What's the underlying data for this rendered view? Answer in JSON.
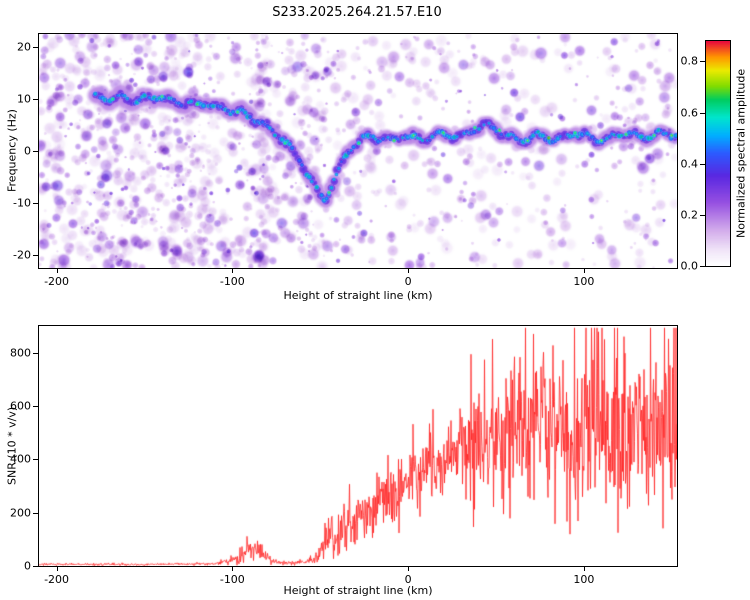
{
  "title": "S233.2025.264.21.57.E10",
  "colors": {
    "snr_line": "#ff2525",
    "axis": "#000000",
    "background": "#ffffff"
  },
  "chart_data": [
    {
      "type": "heatmap",
      "title": "S233.2025.264.21.57.E10",
      "xlabel": "Height of straight line (km)",
      "ylabel": "Frequency (Hz)",
      "xlim": [
        -210,
        153
      ],
      "ylim": [
        -22.5,
        22.5
      ],
      "xticks": [
        -200,
        -100,
        0,
        100
      ],
      "yticks": [
        -20,
        -10,
        0,
        10,
        20
      ],
      "grid": false,
      "legend": false,
      "colorbar": {
        "label": "Normalized spectral amplitude",
        "ticks": [
          0,
          0.2,
          0.4,
          0.6,
          0.8
        ],
        "vmin": 0,
        "vmax": 0.88
      },
      "ridge_track": [
        [
          -178,
          10.5
        ],
        [
          -170,
          10
        ],
        [
          -163,
          10.5
        ],
        [
          -156,
          9.6
        ],
        [
          -149,
          10.2
        ],
        [
          -142,
          10.4
        ],
        [
          -135,
          9.6
        ],
        [
          -128,
          9.2
        ],
        [
          -121,
          8.8
        ],
        [
          -114,
          9.2
        ],
        [
          -107,
          8.2
        ],
        [
          -101,
          7.8
        ],
        [
          -95,
          7.4
        ],
        [
          -89,
          6.4
        ],
        [
          -83,
          5.2
        ],
        [
          -77,
          3.8
        ],
        [
          -71,
          2.2
        ],
        [
          -66,
          0.2
        ],
        [
          -61,
          -2.2
        ],
        [
          -57,
          -4.6
        ],
        [
          -53,
          -6.8
        ],
        [
          -50,
          -8.4
        ],
        [
          -47,
          -9.2
        ],
        [
          -44,
          -7.2
        ],
        [
          -41,
          -4.6
        ],
        [
          -38,
          -2.4
        ],
        [
          -35,
          -0.6
        ],
        [
          -31,
          1
        ],
        [
          -26,
          2.2
        ],
        [
          -21,
          2.8
        ],
        [
          -16,
          2.4
        ],
        [
          -11,
          2
        ],
        [
          -6,
          2.6
        ],
        [
          -1,
          3
        ],
        [
          4,
          2.6
        ],
        [
          9,
          2.1
        ],
        [
          14,
          2.6
        ],
        [
          19,
          3.4
        ],
        [
          24,
          3
        ],
        [
          29,
          2.5
        ],
        [
          34,
          3.4
        ],
        [
          39,
          4.4
        ],
        [
          44,
          5
        ],
        [
          49,
          4.2
        ],
        [
          54,
          3.2
        ],
        [
          59,
          2.6
        ],
        [
          64,
          2.1
        ],
        [
          69,
          2.5
        ],
        [
          74,
          3
        ],
        [
          79,
          2.6
        ],
        [
          84,
          2.1
        ],
        [
          89,
          2.9
        ],
        [
          94,
          3.4
        ],
        [
          99,
          3
        ],
        [
          104,
          2.5
        ],
        [
          109,
          2
        ],
        [
          114,
          2.5
        ],
        [
          119,
          3
        ],
        [
          124,
          3.4
        ],
        [
          129,
          3
        ],
        [
          134,
          2.6
        ],
        [
          139,
          3
        ],
        [
          144,
          3.5
        ],
        [
          149,
          3.1
        ],
        [
          153,
          3
        ]
      ],
      "noise_stripes_x": [
        -85,
        -55
      ],
      "hot_spots": [
        [
          -168,
          10,
          0.86
        ],
        [
          -140,
          10.5,
          0.85
        ],
        [
          -120,
          9,
          0.88
        ],
        [
          -97,
          7.5,
          0.86
        ],
        [
          -70,
          1.5,
          0.85
        ],
        [
          -45,
          -8,
          0.86
        ],
        [
          -28,
          1.5,
          0.87
        ],
        [
          -8,
          2,
          0.9
        ],
        [
          3,
          3,
          0.86
        ],
        [
          20,
          3.5,
          0.88
        ],
        [
          38,
          4.5,
          0.86
        ],
        [
          52,
          4,
          0.9
        ],
        [
          68,
          2,
          0.86
        ],
        [
          80,
          2.5,
          0.98
        ],
        [
          95,
          3.5,
          0.87
        ],
        [
          110,
          2,
          0.86
        ],
        [
          124,
          3.2,
          0.88
        ],
        [
          140,
          3,
          0.86
        ],
        [
          150,
          3,
          0.9
        ]
      ]
    },
    {
      "type": "line",
      "xlabel": "Height of straight line (km)",
      "ylabel": "SNR (10 * v/v)",
      "xlim": [
        -210,
        153
      ],
      "ylim": [
        0,
        900
      ],
      "xticks": [
        -200,
        -100,
        0,
        100
      ],
      "yticks": [
        0,
        200,
        400,
        600,
        800
      ],
      "grid": false,
      "series": [
        {
          "name": "SNR",
          "color": "#ff2525",
          "envelope": [
            [
              -210,
              6,
              4
            ],
            [
              -160,
              6,
              4
            ],
            [
              -110,
              8,
              5
            ],
            [
              -97,
              25,
              18
            ],
            [
              -90,
              70,
              45
            ],
            [
              -84,
              55,
              40
            ],
            [
              -78,
              18,
              12
            ],
            [
              -70,
              12,
              8
            ],
            [
              -62,
              14,
              9
            ],
            [
              -55,
              20,
              14
            ],
            [
              -50,
              45,
              30
            ],
            [
              -46,
              140,
              110
            ],
            [
              -42,
              110,
              70
            ],
            [
              -37,
              150,
              80
            ],
            [
              -30,
              180,
              90
            ],
            [
              -22,
              210,
              100
            ],
            [
              -15,
              240,
              110
            ],
            [
              -8,
              270,
              120
            ],
            [
              0,
              310,
              130
            ],
            [
              8,
              340,
              130
            ],
            [
              16,
              370,
              140
            ],
            [
              24,
              410,
              160
            ],
            [
              32,
              440,
              220
            ],
            [
              40,
              460,
              260
            ],
            [
              48,
              490,
              280
            ],
            [
              56,
              500,
              290
            ],
            [
              64,
              515,
              290
            ],
            [
              72,
              520,
              300
            ],
            [
              80,
              530,
              300
            ],
            [
              88,
              520,
              310
            ],
            [
              96,
              470,
              300
            ],
            [
              102,
              540,
              340
            ],
            [
              108,
              560,
              350
            ],
            [
              114,
              500,
              310
            ],
            [
              122,
              515,
              300
            ],
            [
              130,
              520,
              300
            ],
            [
              138,
              515,
              300
            ],
            [
              146,
              505,
              295
            ],
            [
              153,
              490,
              285
            ]
          ]
        }
      ]
    }
  ]
}
